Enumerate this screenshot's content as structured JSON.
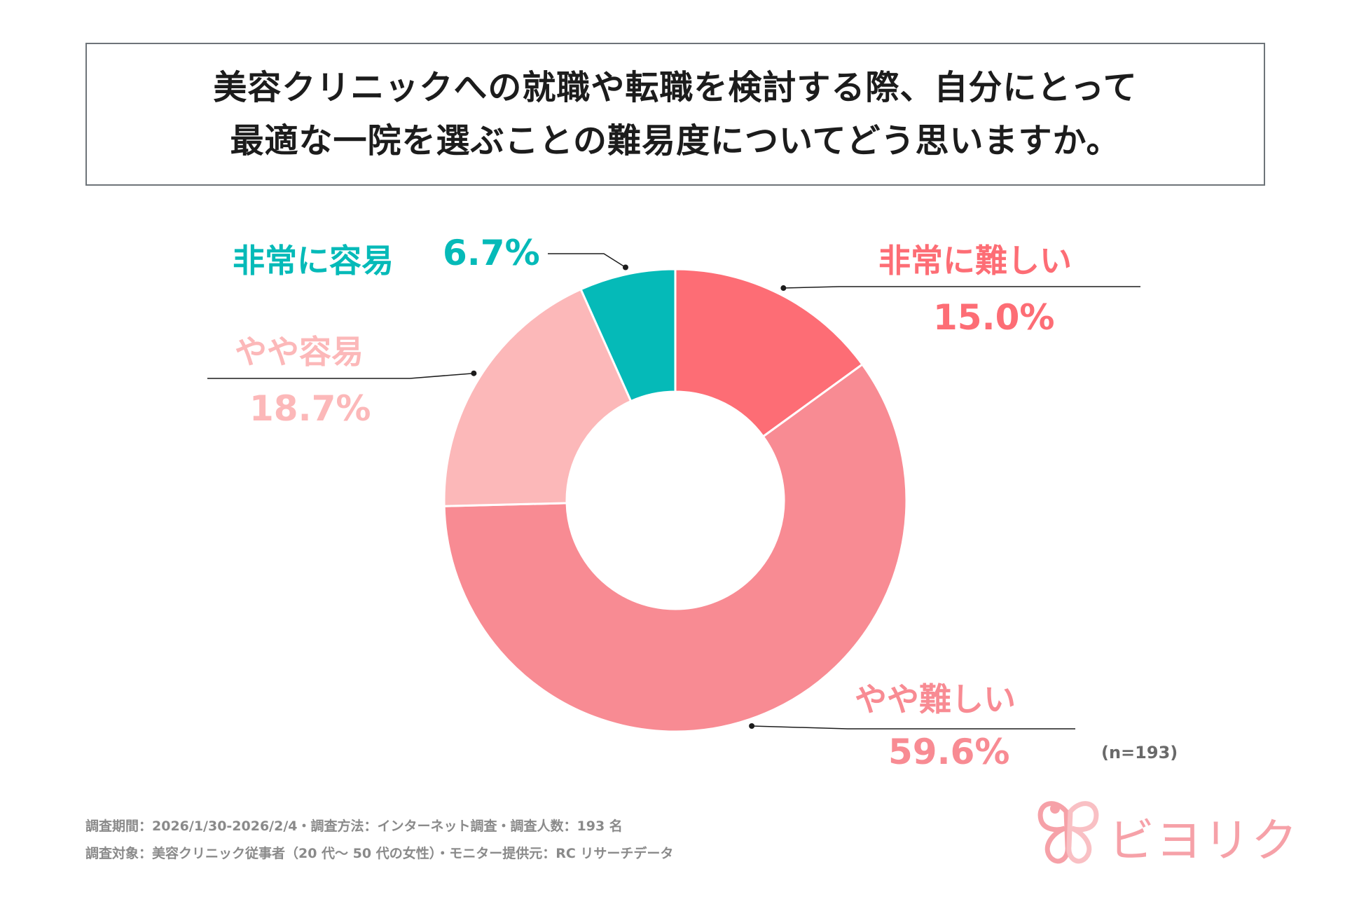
{
  "title": {
    "line1": "美容クリニックへの就職や転職を検討する際、自分にとって",
    "line2": "最適な一院を選ぶことの難易度についてどう思いますか。"
  },
  "chart_data": {
    "type": "pie",
    "style": "donut",
    "start": "12 o'clock, clockwise",
    "slices": [
      {
        "label": "非常に難しい",
        "value": 15.0,
        "value_label": "15.0%",
        "color": "#fd6d75"
      },
      {
        "label": "やや難しい",
        "value": 59.6,
        "value_label": "59.6%",
        "color": "#f88b93"
      },
      {
        "label": "やや容易",
        "value": 18.7,
        "value_label": "18.7%",
        "color": "#fcb8b9"
      },
      {
        "label": "非常に容易",
        "value": 6.7,
        "value_label": "6.7%",
        "color": "#05bab8"
      }
    ]
  },
  "sample_note": "(n=193)",
  "footer": {
    "line1": "調査期間：2026/1/30-2026/2/4・調査方法：インターネット調査・調査人数：193 名",
    "line2": "調査対象：美容クリニック従事者（20 代～ 50 代の女性）・モニター提供元：RC リサーチデータ"
  },
  "brand": {
    "name": "ビヨリク",
    "color": "#f6a1a8",
    "icon": "butterfly-logo-icon"
  }
}
